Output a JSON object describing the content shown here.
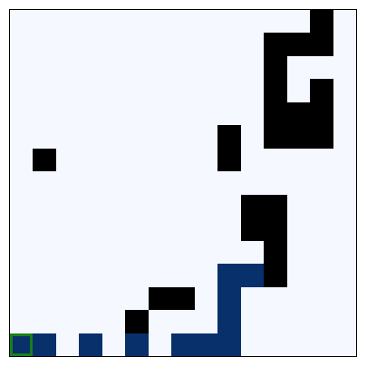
{
  "grid": {
    "rows": 15,
    "cols": 15,
    "colors": {
      "empty": "#f5f9ff",
      "wall": "#000000",
      "path": "#08306b",
      "agent_border": "#1a7f1a"
    },
    "walls": [
      [
        0,
        13
      ],
      [
        1,
        11
      ],
      [
        1,
        12
      ],
      [
        1,
        13
      ],
      [
        2,
        11
      ],
      [
        3,
        11
      ],
      [
        3,
        13
      ],
      [
        4,
        11
      ],
      [
        4,
        12
      ],
      [
        4,
        13
      ],
      [
        5,
        9
      ],
      [
        5,
        11
      ],
      [
        5,
        12
      ],
      [
        5,
        13
      ],
      [
        6,
        1
      ],
      [
        6,
        9
      ],
      [
        8,
        10
      ],
      [
        8,
        11
      ],
      [
        9,
        10
      ],
      [
        9,
        11
      ],
      [
        10,
        11
      ],
      [
        11,
        11
      ],
      [
        12,
        6
      ],
      [
        12,
        7
      ],
      [
        13,
        5
      ]
    ],
    "path": [
      [
        11,
        9
      ],
      [
        11,
        10
      ],
      [
        12,
        9
      ],
      [
        13,
        9
      ],
      [
        14,
        1
      ],
      [
        14,
        3
      ],
      [
        14,
        5
      ],
      [
        14,
        7
      ],
      [
        14,
        8
      ],
      [
        14,
        9
      ]
    ],
    "agent": [
      14,
      0
    ]
  }
}
